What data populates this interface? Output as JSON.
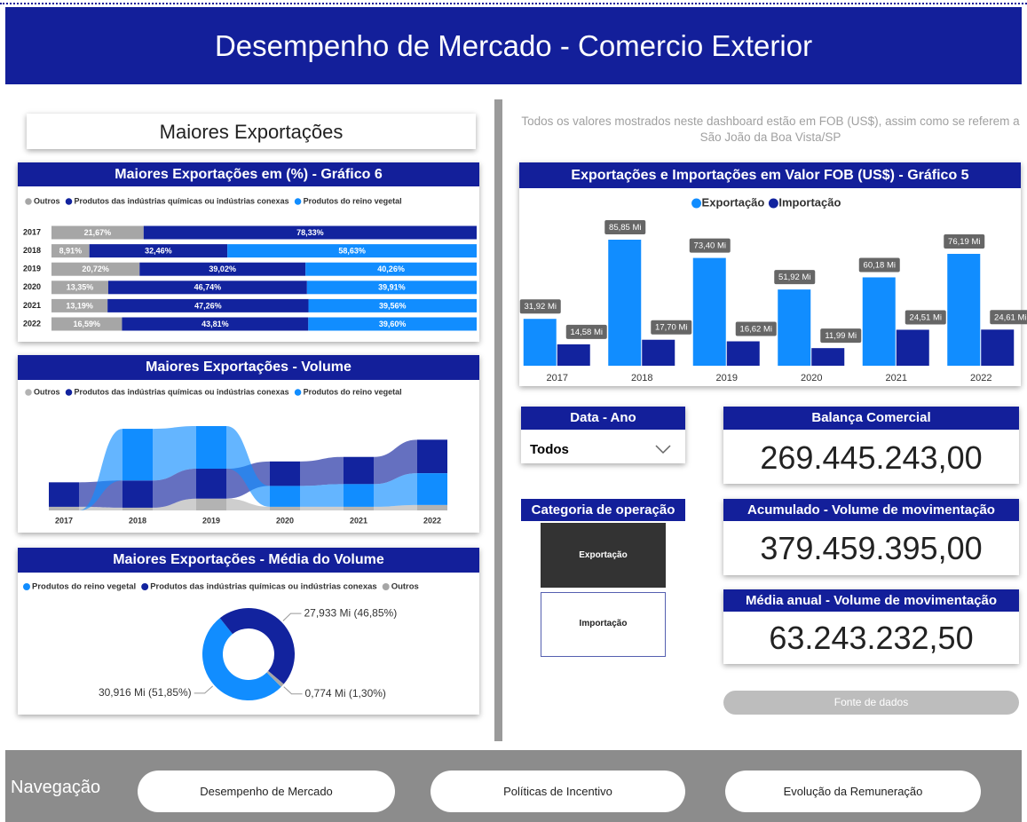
{
  "header": {
    "title": "Desempenho de Mercado - Comercio Exterior"
  },
  "left_title": "Maiores Exportações",
  "note": "Todos os valores mostrados neste dashboard estão em FOB (US$), assim como se referem a São João da Boa Vista/SP",
  "chart_data": [
    {
      "type": "bar",
      "orientation": "horizontal",
      "stacking": "percent",
      "title": "Maiores Exportações em (%) - Gráfico 6",
      "categories": [
        "2017",
        "2018",
        "2019",
        "2020",
        "2021",
        "2022"
      ],
      "series": [
        {
          "name": "Outros",
          "color": "#a6a6a6",
          "values": [
            21.67,
            8.91,
            20.72,
            13.35,
            13.19,
            16.59
          ],
          "value_labels": [
            "21,67%",
            "8,91%",
            "20,72%",
            "13,35%",
            "13,19%",
            "16,59%"
          ]
        },
        {
          "name": "Produtos das indústrias químicas ou indústrias conexas",
          "color": "#12239e",
          "values": [
            78.33,
            32.46,
            39.02,
            46.74,
            47.26,
            43.81
          ],
          "value_labels": [
            "78,33%",
            "32,46%",
            "39,02%",
            "46,74%",
            "47,26%",
            "43,81%"
          ]
        },
        {
          "name": "Produtos do reino vegetal",
          "color": "#118dff",
          "values": [
            null,
            58.63,
            40.26,
            39.91,
            39.56,
            39.6
          ],
          "value_labels": [
            null,
            "58,63%",
            "40,26%",
            "39,91%",
            "39,56%",
            "39,60%"
          ]
        }
      ]
    },
    {
      "type": "ribbon",
      "title": "Maiores Exportações - Volume",
      "categories": [
        "2017",
        "2018",
        "2019",
        "2020",
        "2021",
        "2022"
      ],
      "series": [
        {
          "name": "Outros",
          "color": "#b3b3b3",
          "values": [
            4,
            3,
            13,
            4,
            4,
            6
          ]
        },
        {
          "name": "Produtos das indústrias químicas ou indústrias conexas",
          "color": "#12239e",
          "values": [
            27,
            30,
            33,
            27,
            30,
            37
          ]
        },
        {
          "name": "Produtos do reino vegetal",
          "color": "#118dff",
          "values": [
            0,
            57,
            47,
            23,
            25,
            35
          ]
        }
      ]
    },
    {
      "type": "donut",
      "title": "Maiores Exportações - Média do Volume",
      "categories": [
        "Produtos do reino vegetal",
        "Produtos das indústrias químicas ou indústrias conexas",
        "Outros"
      ],
      "colors": [
        "#118dff",
        "#12239e",
        "#a6a6a6"
      ],
      "values": [
        30.916,
        27.933,
        0.774
      ],
      "value_labels": [
        "30,916 Mi (51,85%)",
        "27,933 Mi (46,85%)",
        "0,774 Mi (1,30%)"
      ]
    },
    {
      "type": "bar",
      "title": "Exportações e Importações em Valor FOB (US$) - Gráfico 5",
      "categories": [
        "2017",
        "2018",
        "2019",
        "2020",
        "2021",
        "2022"
      ],
      "series": [
        {
          "name": "Exportação",
          "color": "#118dff",
          "values": [
            31.92,
            85.85,
            73.4,
            51.92,
            60.18,
            76.19
          ],
          "value_labels": [
            "31,92 Mi",
            "85,85 Mi",
            "73,40 Mi",
            "51,92 Mi",
            "60,18 Mi",
            "76,19 Mi"
          ]
        },
        {
          "name": "Importação",
          "color": "#12239e",
          "values": [
            14.58,
            17.7,
            16.62,
            11.99,
            24.51,
            24.61
          ],
          "value_labels": [
            "14,58 Mi",
            "17,70 Mi",
            "16,62 Mi",
            "11,99 Mi",
            "24,51 Mi",
            "24,61 Mi"
          ]
        }
      ]
    }
  ],
  "slicers": {
    "year": {
      "title": "Data - Ano",
      "value": "Todos"
    },
    "category": {
      "title": "Categoria de operação",
      "options": [
        "Exportação",
        "Importação"
      ]
    }
  },
  "kpis": [
    {
      "title": "Balança Comercial",
      "value": "269.445.243,00"
    },
    {
      "title": "Acumulado - Volume de movimentação",
      "value": "379.459.395,00"
    },
    {
      "title": "Média anual - Volume de movimentação",
      "value": "63.243.232,50"
    }
  ],
  "source_button": "Fonte de dados",
  "navigation": {
    "label": "Navegação",
    "buttons": [
      "Desempenho de Mercado",
      "Políticas de Incentivo",
      "Evolução da Remuneração"
    ]
  }
}
